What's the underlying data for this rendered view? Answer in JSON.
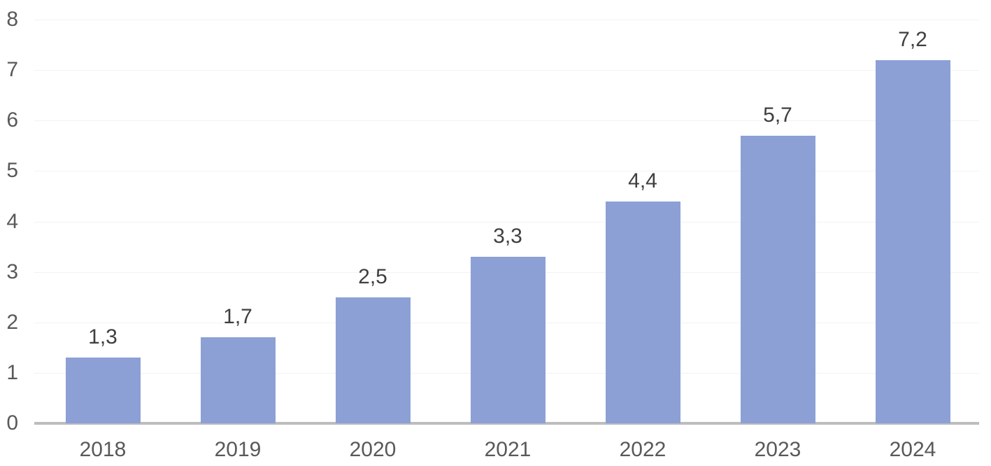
{
  "chart_data": {
    "type": "bar",
    "title": "",
    "xlabel": "",
    "ylabel": "",
    "categories": [
      "2018",
      "2019",
      "2020",
      "2021",
      "2022",
      "2023",
      "2024"
    ],
    "values": [
      1.3,
      1.7,
      2.5,
      3.3,
      4.4,
      5.7,
      7.2
    ],
    "data_labels": [
      "1,3",
      "1,7",
      "2,5",
      "3,3",
      "4,4",
      "5,7",
      "7,2"
    ],
    "yticks": [
      "0",
      "1",
      "2",
      "3",
      "4",
      "5",
      "6",
      "7",
      "8"
    ],
    "ylim": [
      0,
      8
    ],
    "ytick_interval": 1,
    "grid": true,
    "legend": "none",
    "decimal_separator": ","
  },
  "colors": {
    "bar": "#8CA0D5",
    "gridline": "#F2F2F2",
    "axis_line": "#BDBDBD",
    "tick_label": "#595959",
    "category_label": "#595959",
    "data_label": "#3F3F3F",
    "background": "#FFFFFF"
  }
}
